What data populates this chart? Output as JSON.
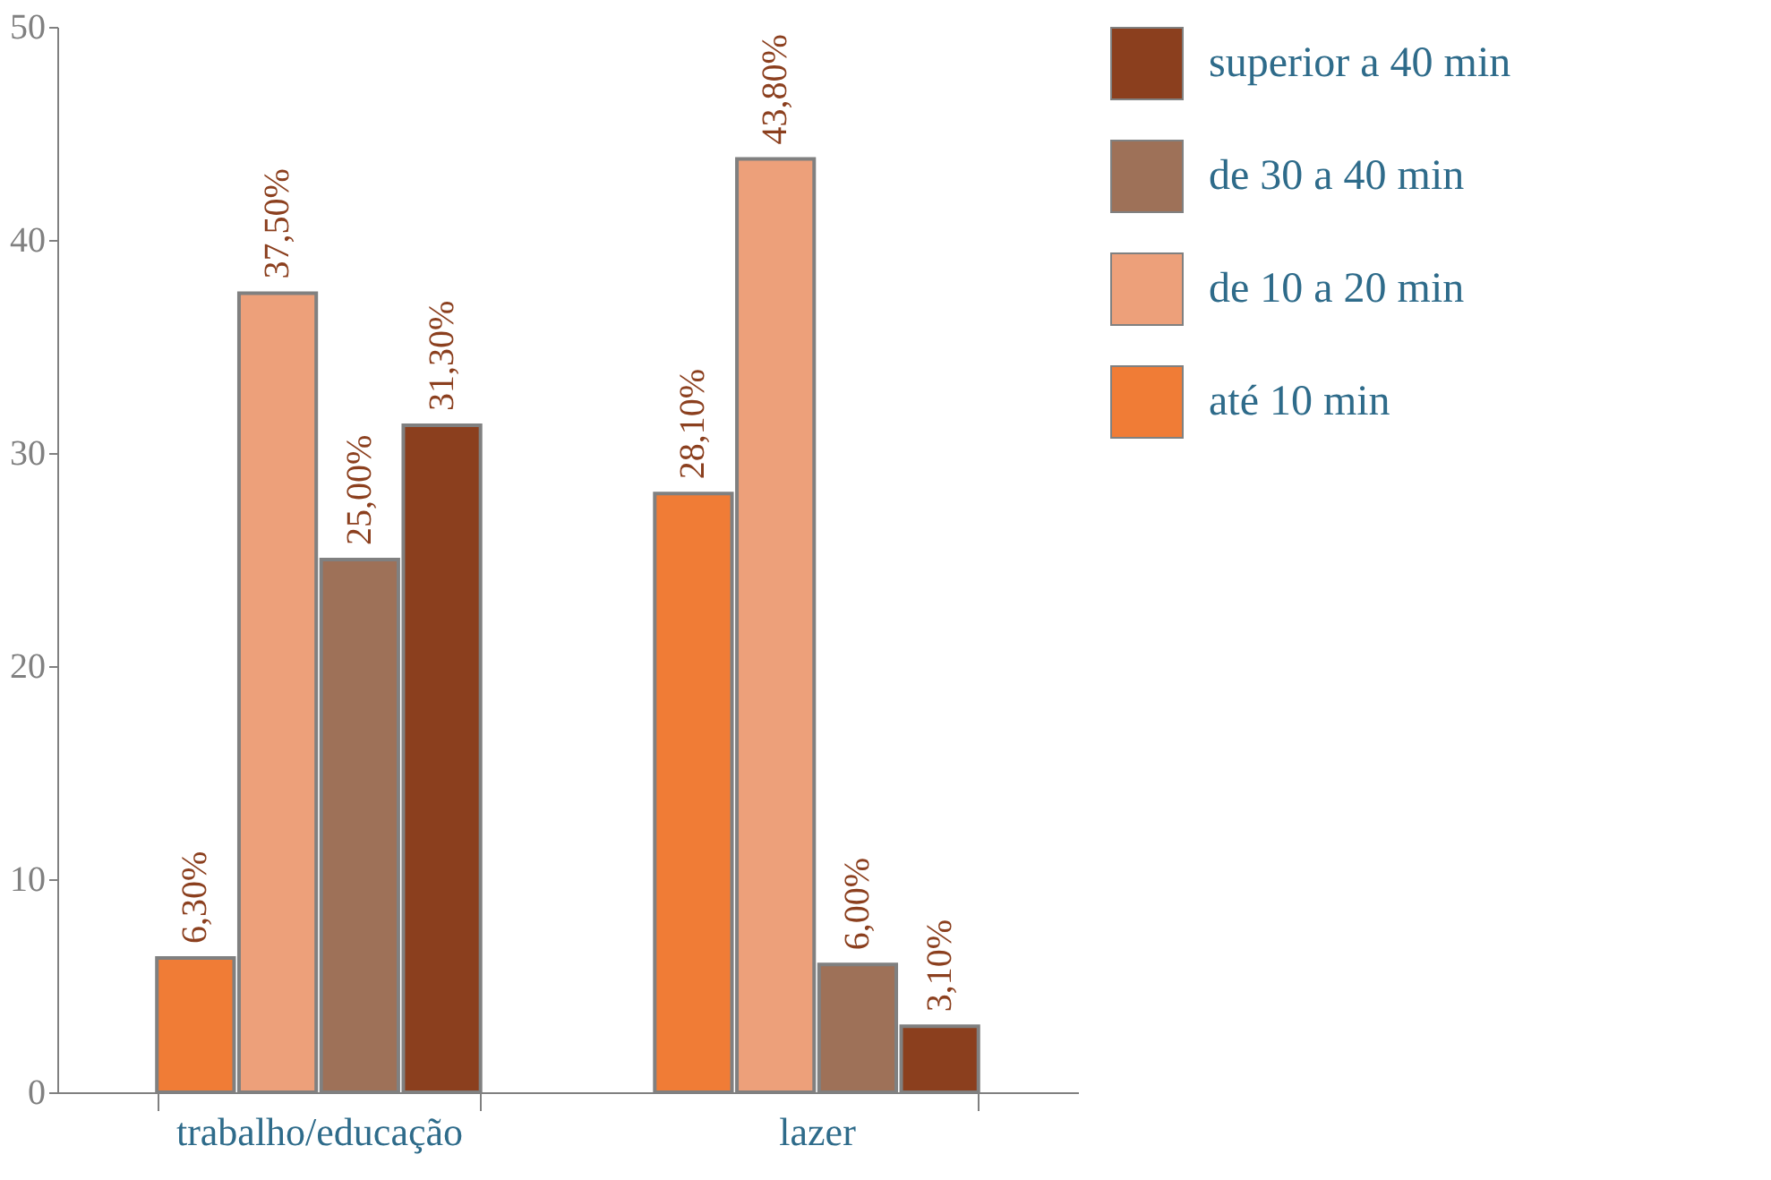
{
  "chart_data": {
    "type": "bar",
    "categories": [
      "trabalho/educação",
      "lazer"
    ],
    "series": [
      {
        "name": "até 10 min",
        "color": "#f07c36",
        "values": [
          6.3,
          28.1
        ],
        "value_labels": [
          "6,30%",
          "28,10%"
        ]
      },
      {
        "name": "de 10 a 20 min",
        "color": "#eda07a",
        "values": [
          37.5,
          43.8
        ],
        "value_labels": [
          "37,50%",
          "43,80%"
        ]
      },
      {
        "name": "de 30 a 40 min",
        "color": "#9e7158",
        "values": [
          25.0,
          6.0
        ],
        "value_labels": [
          "25,00%",
          "6,00%"
        ]
      },
      {
        "name": "superior a 40 min",
        "color": "#8b3f1e",
        "values": [
          31.3,
          3.1
        ],
        "value_labels": [
          "31,30%",
          "3,10%"
        ]
      }
    ],
    "ylim": [
      0,
      50
    ],
    "yticks": [
      0,
      10,
      20,
      30,
      40,
      50
    ],
    "grid": false,
    "legend": "top right"
  }
}
